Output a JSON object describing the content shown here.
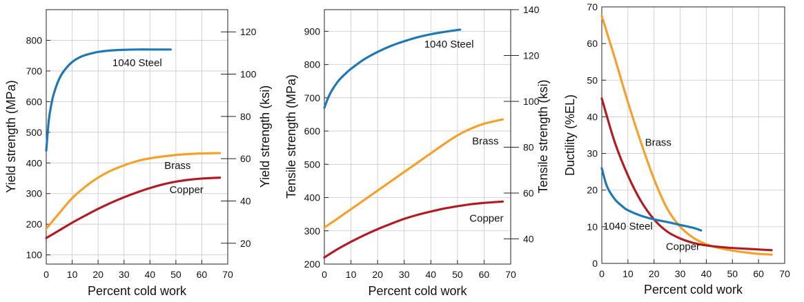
{
  "colors": {
    "steel": "#1f77b4",
    "brass": "#f5a02a",
    "copper": "#b01c24",
    "grid": "#c8c8c8",
    "axis": "#222222"
  },
  "chart_data": [
    {
      "type": "line",
      "title": "",
      "xlabel": "Percent cold work",
      "ylabel": "Yield strength (MPa)",
      "ylabel_right": "Yield strength (ksi)",
      "xlim": [
        0,
        70
      ],
      "ylim": [
        70,
        900
      ],
      "ylim_right_ksi": [
        10.15,
        130.5
      ],
      "xticks": [
        0,
        10,
        20,
        30,
        40,
        50,
        60,
        70
      ],
      "yticks": [
        100,
        200,
        300,
        400,
        500,
        600,
        700,
        800
      ],
      "yticks_right": [
        20,
        40,
        60,
        80,
        100,
        120
      ],
      "grid": true,
      "series": [
        {
          "name": "1040 Steel",
          "color": "#1f77b4",
          "label_at": [
            25,
            727
          ],
          "x": [
            0,
            1,
            2,
            3,
            5,
            7,
            10,
            13,
            16,
            20,
            25,
            30,
            35,
            40,
            45,
            48
          ],
          "y": [
            440,
            540,
            592,
            628,
            674,
            702,
            729,
            745,
            754,
            762,
            767,
            769,
            770,
            770,
            770,
            770
          ]
        },
        {
          "name": "Brass",
          "color": "#f5a02a",
          "label_at": [
            45,
            392
          ],
          "x": [
            0,
            5,
            10,
            15,
            20,
            25,
            30,
            35,
            40,
            45,
            50,
            55,
            60,
            67
          ],
          "y": [
            185,
            236,
            285,
            322,
            352,
            375,
            392,
            406,
            415,
            421,
            426,
            429,
            431,
            432
          ]
        },
        {
          "name": "Copper",
          "color": "#b01c24",
          "label_at": [
            47,
            313
          ],
          "x": [
            0,
            5,
            10,
            15,
            20,
            25,
            30,
            35,
            40,
            45,
            50,
            55,
            60,
            67
          ],
          "y": [
            155,
            180,
            205,
            228,
            250,
            270,
            288,
            304,
            318,
            330,
            339,
            345,
            349,
            352
          ]
        }
      ]
    },
    {
      "type": "line",
      "title": "",
      "xlabel": "Percent cold work",
      "ylabel": "Tensile strength (MPa)",
      "ylabel_right": "Tensile strength (ksi)",
      "xlim": [
        0,
        70
      ],
      "ylim": [
        200,
        965
      ],
      "ylim_right_ksi": [
        29,
        140
      ],
      "xticks": [
        0,
        10,
        20,
        30,
        40,
        50,
        60,
        70
      ],
      "yticks": [
        200,
        300,
        400,
        500,
        600,
        700,
        800,
        900
      ],
      "yticks_right": [
        40,
        60,
        80,
        100,
        120,
        140
      ],
      "grid": true,
      "series": [
        {
          "name": "1040 Steel",
          "color": "#1f77b4",
          "label_at": [
            37,
            861
          ],
          "x": [
            0,
            2,
            5,
            8,
            10,
            15,
            20,
            25,
            30,
            35,
            40,
            45,
            51
          ],
          "y": [
            670,
            710,
            748,
            773,
            787,
            816,
            838,
            856,
            870,
            882,
            891,
            898,
            905
          ]
        },
        {
          "name": "Brass",
          "color": "#f5a02a",
          "label_at": [
            55,
            570
          ],
          "x": [
            0,
            5,
            10,
            15,
            20,
            25,
            30,
            35,
            40,
            45,
            50,
            55,
            60,
            67
          ],
          "y": [
            310,
            337,
            365,
            393,
            421,
            449,
            477,
            505,
            533,
            561,
            587,
            607,
            622,
            635
          ]
        },
        {
          "name": "Copper",
          "color": "#b01c24",
          "label_at": [
            54,
            338
          ],
          "x": [
            0,
            5,
            10,
            15,
            20,
            25,
            30,
            35,
            40,
            45,
            50,
            55,
            60,
            67
          ],
          "y": [
            220,
            245,
            267,
            287,
            305,
            321,
            336,
            348,
            358,
            367,
            374,
            380,
            384,
            388
          ]
        }
      ]
    },
    {
      "type": "line",
      "title": "",
      "xlabel": "Percent cold work",
      "ylabel": "Ductility (%EL)",
      "xlim": [
        0,
        70
      ],
      "ylim": [
        0,
        70
      ],
      "xticks": [
        0,
        10,
        20,
        30,
        40,
        50,
        60,
        70
      ],
      "yticks": [
        0,
        10,
        20,
        30,
        40,
        50,
        60,
        70
      ],
      "grid": true,
      "series": [
        {
          "name": "Brass",
          "color": "#f5a02a",
          "label_at": [
            16,
            33
          ],
          "x": [
            0,
            5,
            10,
            15,
            20,
            25,
            30,
            35,
            40,
            45,
            50,
            55,
            60,
            65
          ],
          "y": [
            67.5,
            56,
            44,
            33,
            23,
            15,
            10,
            7,
            5.2,
            4.2,
            3.5,
            3,
            2.6,
            2.4
          ]
        },
        {
          "name": "Copper",
          "color": "#b01c24",
          "label_at": [
            24,
            4.6
          ],
          "x": [
            0,
            5,
            10,
            15,
            20,
            25,
            30,
            35,
            40,
            45,
            50,
            55,
            60,
            65
          ],
          "y": [
            45,
            33,
            24,
            17,
            12,
            8.7,
            6.8,
            5.6,
            4.9,
            4.5,
            4.2,
            4,
            3.8,
            3.6
          ]
        },
        {
          "name": "1040 Steel",
          "color": "#1f77b4",
          "label_at": [
            0,
            10.2
          ],
          "x": [
            0,
            2,
            5,
            8,
            10,
            15,
            20,
            25,
            30,
            35,
            38
          ],
          "y": [
            26,
            21,
            17.5,
            15.5,
            14.5,
            13,
            12,
            11.3,
            10.5,
            9.7,
            9
          ]
        }
      ]
    }
  ]
}
